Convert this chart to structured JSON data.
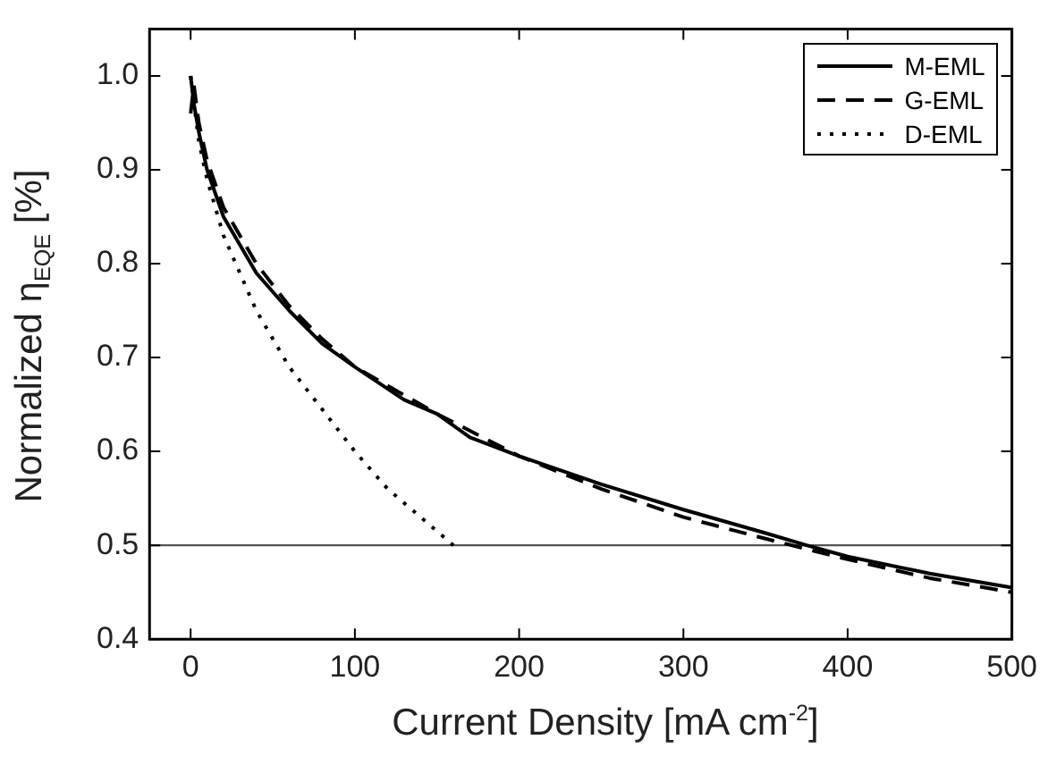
{
  "chart_data": {
    "type": "line",
    "xlabel": "Current Density [mA cm$^{-2}$]",
    "ylabel": "Normalized η$_{EQE}$ [%]",
    "xlim": [
      -25,
      500
    ],
    "xticks": [
      0,
      100,
      200,
      300,
      400,
      500
    ],
    "ylim": [
      0.4,
      1.05
    ],
    "yticks": [
      0.4,
      0.5,
      0.6,
      0.7,
      0.8,
      0.9,
      {
        "value": 1,
        "label": "1.0"
      }
    ],
    "grid": false,
    "legend": "top right",
    "marker": "none",
    "ref_lines": [
      {
        "axis": "y",
        "value": 0.5,
        "color": "#555555"
      }
    ],
    "series": [
      {
        "name": "M-EML",
        "color": "#000000",
        "line_style": "solid",
        "x": [
          0,
          2,
          5,
          10,
          20,
          40,
          60,
          80,
          100,
          130,
          150,
          170,
          200,
          250,
          300,
          350,
          375,
          400,
          450,
          500
        ],
        "values": [
          1.0,
          0.97,
          0.94,
          0.9,
          0.85,
          0.79,
          0.75,
          0.715,
          0.69,
          0.655,
          0.64,
          0.615,
          0.595,
          0.565,
          0.538,
          0.513,
          0.5,
          0.488,
          0.47,
          0.455
        ]
      },
      {
        "name": "G-EML",
        "color": "#000000",
        "line_style": "dashed",
        "x": [
          0,
          2,
          5,
          10,
          20,
          40,
          60,
          80,
          100,
          150,
          200,
          250,
          300,
          350,
          400,
          450,
          500
        ],
        "values": [
          0.96,
          0.99,
          0.95,
          0.91,
          0.86,
          0.8,
          0.755,
          0.72,
          0.69,
          0.64,
          0.595,
          0.56,
          0.53,
          0.507,
          0.485,
          0.465,
          0.45
        ]
      },
      {
        "name": "D-EML",
        "color": "#000000",
        "line_style": "dotted",
        "x": [
          0,
          5,
          10,
          20,
          40,
          60,
          80,
          100,
          120,
          140,
          160
        ],
        "values": [
          1.0,
          0.93,
          0.89,
          0.83,
          0.75,
          0.69,
          0.645,
          0.6,
          0.56,
          0.53,
          0.5
        ]
      }
    ]
  }
}
